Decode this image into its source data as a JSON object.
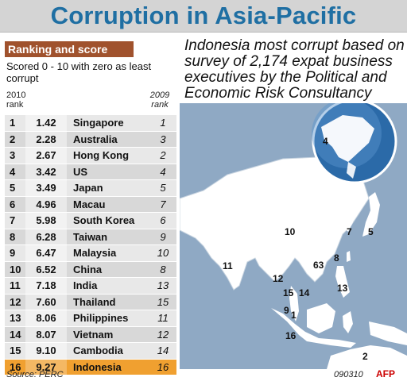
{
  "title": "Corruption in Asia-Pacific",
  "section_header": "Ranking and score",
  "description": "Scored 0 - 10 with zero as least corrupt",
  "col_2010": "2010 rank",
  "col_2009": "2009 rank",
  "rows": [
    {
      "rank": "1",
      "score": "1.42",
      "country": "Singapore",
      "prev": "1"
    },
    {
      "rank": "2",
      "score": "2.28",
      "country": "Australia",
      "prev": "3"
    },
    {
      "rank": "3",
      "score": "2.67",
      "country": "Hong Kong",
      "prev": "2"
    },
    {
      "rank": "4",
      "score": "3.42",
      "country": "US",
      "prev": "4"
    },
    {
      "rank": "5",
      "score": "3.49",
      "country": "Japan",
      "prev": "5"
    },
    {
      "rank": "6",
      "score": "4.96",
      "country": "Macau",
      "prev": "7"
    },
    {
      "rank": "7",
      "score": "5.98",
      "country": "South Korea",
      "prev": "6"
    },
    {
      "rank": "8",
      "score": "6.28",
      "country": "Taiwan",
      "prev": "9"
    },
    {
      "rank": "9",
      "score": "6.47",
      "country": "Malaysia",
      "prev": "10"
    },
    {
      "rank": "10",
      "score": "6.52",
      "country": "China",
      "prev": "8"
    },
    {
      "rank": "11",
      "score": "7.18",
      "country": "India",
      "prev": "13"
    },
    {
      "rank": "12",
      "score": "7.60",
      "country": "Thailand",
      "prev": "15"
    },
    {
      "rank": "13",
      "score": "8.06",
      "country": "Philippines",
      "prev": "11"
    },
    {
      "rank": "14",
      "score": "8.07",
      "country": "Vietnam",
      "prev": "12"
    },
    {
      "rank": "15",
      "score": "9.10",
      "country": "Cambodia",
      "prev": "14"
    },
    {
      "rank": "16",
      "score": "9.27",
      "country": "Indonesia",
      "prev": "16"
    }
  ],
  "headline": "Indonesia most corrupt based on survey of 2,174 expat business executives by the Political and Economic Risk Consultancy",
  "source": "Source: PERC",
  "footer_code": "090310",
  "agency": "AFP",
  "map_labels": {
    "us": "4",
    "china": "10",
    "india": "11",
    "korea": "7",
    "japan": "5",
    "macau_hk": "63",
    "taiwan": "8",
    "thailand": "12",
    "cambodia": "15",
    "vietnam": "14",
    "philippines": "13",
    "malaysia": "9",
    "singapore": "1",
    "indonesia": "16",
    "australia": "2"
  },
  "colors": {
    "title": "#1f6fa3",
    "header_bg": "#a0522d",
    "highlight": "#f0a030",
    "map_land": "#ffffff",
    "map_sea": "#8fa9c4"
  }
}
